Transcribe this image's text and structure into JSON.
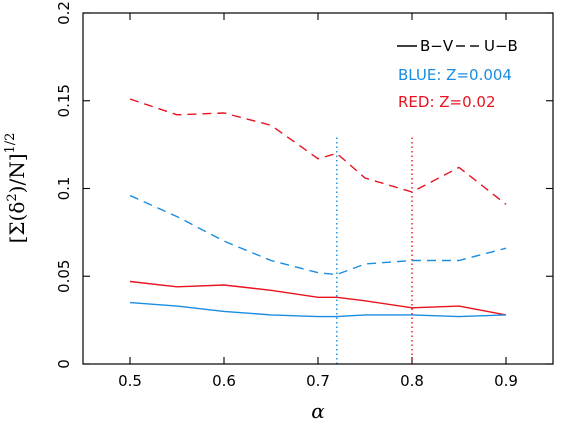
{
  "chart_data": {
    "type": "line",
    "xlabel": "α",
    "ylabel": {
      "open_bracket": "[",
      "sigma": "Σ(δ",
      "sq": "2",
      "rest": ")/N]",
      "exponent": "1/2"
    },
    "xlim": [
      0.45,
      0.95
    ],
    "ylim": [
      0,
      0.2
    ],
    "x_ticks": [
      {
        "value": 0.5,
        "label": "0.5"
      },
      {
        "value": 0.6,
        "label": "0.6"
      },
      {
        "value": 0.7,
        "label": "0.7"
      },
      {
        "value": 0.8,
        "label": "0.8"
      },
      {
        "value": 0.9,
        "label": "0.9"
      }
    ],
    "y_ticks": [
      {
        "value": 0,
        "label": "0"
      },
      {
        "value": 0.05,
        "label": "0.05"
      },
      {
        "value": 0.1,
        "label": "0.1"
      },
      {
        "value": 0.15,
        "label": "0.15"
      },
      {
        "value": 0.2,
        "label": "0.2"
      }
    ],
    "x": [
      0.5,
      0.55,
      0.6,
      0.65,
      0.7,
      0.72,
      0.75,
      0.8,
      0.85,
      0.9
    ],
    "series": [
      {
        "key": "red-uvb",
        "color": "#e8131f",
        "dash": true,
        "values": [
          0.151,
          0.142,
          0.143,
          0.136,
          0.117,
          0.12,
          0.106,
          0.098,
          0.112,
          0.091
        ]
      },
      {
        "key": "blue-uvb",
        "color": "#1a8de0",
        "dash": true,
        "values": [
          0.096,
          0.084,
          0.07,
          0.059,
          0.052,
          0.051,
          0.057,
          0.059,
          0.059,
          0.066
        ]
      },
      {
        "key": "red-bv",
        "color": "#e8131f",
        "dash": false,
        "values": [
          0.047,
          0.044,
          0.045,
          0.042,
          0.038,
          0.038,
          0.036,
          0.032,
          0.033,
          0.028
        ]
      },
      {
        "key": "blue-bv",
        "color": "#1a8de0",
        "dash": false,
        "values": [
          0.035,
          0.033,
          0.03,
          0.028,
          0.027,
          0.027,
          0.028,
          0.028,
          0.027,
          0.028
        ]
      }
    ],
    "vlines": [
      {
        "x": 0.72,
        "color": "#1a8de0",
        "y_range": [
          0,
          0.13
        ]
      },
      {
        "x": 0.8,
        "color": "#e8131f",
        "y_range": [
          0,
          0.13
        ]
      }
    ],
    "legend": {
      "placement": "top-right",
      "bv_label": "B−V",
      "ub_label": "U−B",
      "blue_label": "BLUE:  Z=0.004",
      "red_label": "RED:  Z=0.02",
      "blue_color": "#1a8de0",
      "red_color": "#e8131f"
    },
    "grid": false
  }
}
